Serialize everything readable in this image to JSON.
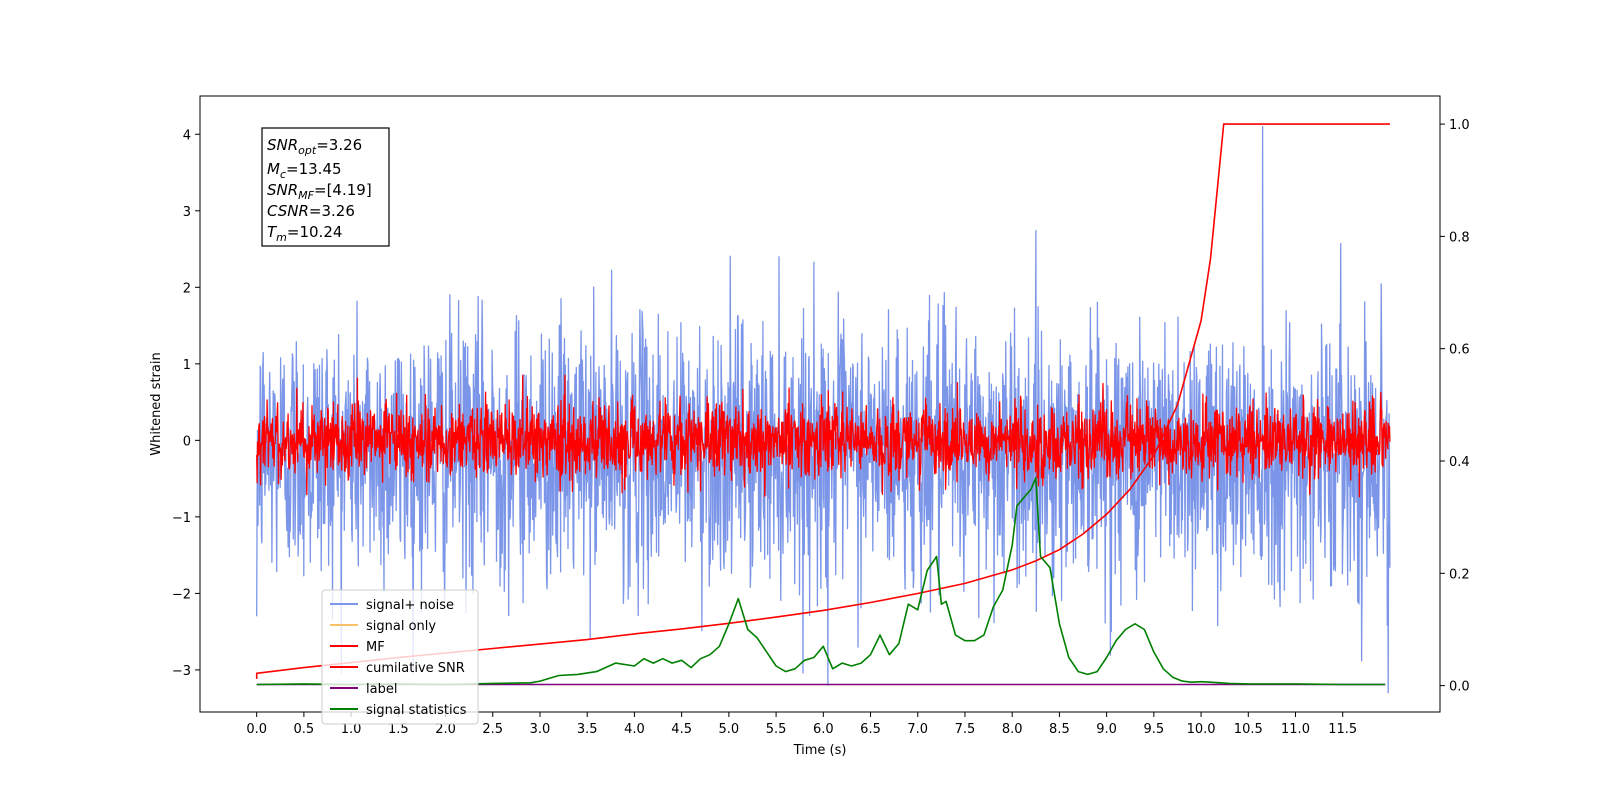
{
  "chart_data": {
    "type": "line",
    "xlabel": "Time (s)",
    "ylabel": "Whitened strain",
    "xlim": [
      -0.6,
      12.53
    ],
    "ylim": [
      -3.55,
      4.5
    ],
    "y2lim": [
      -0.047,
      1.05
    ],
    "x_ticks": [
      "0.0",
      "0.5",
      "1.0",
      "1.5",
      "2.0",
      "2.5",
      "3.0",
      "3.5",
      "4.0",
      "4.5",
      "5.0",
      "5.5",
      "6.0",
      "6.5",
      "7.0",
      "7.5",
      "8.0",
      "8.5",
      "9.0",
      "9.5",
      "10.0",
      "10.5",
      "11.0",
      "11.5"
    ],
    "y_ticks": [
      "−3",
      "−2",
      "−1",
      "0",
      "1",
      "2",
      "3",
      "4"
    ],
    "y2_ticks": [
      "0.0",
      "0.2",
      "0.4",
      "0.6",
      "0.8",
      "1.0"
    ],
    "annotation": {
      "snr_opt": {
        "var": "SNR",
        "sub": "opt",
        "value": "=3.26"
      },
      "mc": {
        "var": "M",
        "sub": "c",
        "value": "=13.45"
      },
      "snr_mf": {
        "var": "SNR",
        "sub": "MF",
        "value": "=[4.19]"
      },
      "csnr": {
        "var": "CSNR",
        "value": "=3.26"
      },
      "tm": {
        "var": "T",
        "sub": "m",
        "value": "=10.24"
      }
    },
    "legend": {
      "placement": "lower-left",
      "entries": [
        {
          "label": "signal+ noise",
          "color": "#7b96e8"
        },
        {
          "label": "signal only",
          "color": "#f5c26b"
        },
        {
          "label": "MF",
          "color": "#ff0000"
        },
        {
          "label": "cumilative SNR",
          "color": "#ff0000"
        },
        {
          "label": "label",
          "color": "#800080"
        },
        {
          "label": "signal statistics",
          "color": "#008000"
        }
      ]
    },
    "series": [
      {
        "name": "signal+ noise",
        "axis": "left",
        "color": "#7b96e8",
        "description": "noise",
        "x_range": [
          0.0,
          12.0
        ],
        "center": -0.15,
        "spread": 0.85,
        "spikes": [
          {
            "x": 10.65,
            "y": 4.1
          },
          {
            "x": 6.05,
            "y": -3.2
          },
          {
            "x": 11.98,
            "y": -3.3
          },
          {
            "x": 0.0,
            "y": -2.3
          }
        ]
      },
      {
        "name": "MF",
        "axis": "left",
        "color": "#ff0000",
        "description": "noise",
        "x_range": [
          0.0,
          12.0
        ],
        "center": 0.0,
        "spread": 0.25
      },
      {
        "name": "cumilative SNR",
        "axis": "right",
        "color": "#ff0000",
        "x": [
          0.0,
          0.0,
          0.5,
          1,
          1.5,
          2,
          2.5,
          3,
          3.5,
          4,
          4.5,
          5,
          5.5,
          6,
          6.5,
          7,
          7.5,
          8,
          8.25,
          8.5,
          8.75,
          9,
          9.25,
          9.5,
          9.75,
          10,
          10.1,
          10.24,
          12.0
        ],
        "y": [
          0.012,
          0.022,
          0.032,
          0.041,
          0.05,
          0.058,
          0.066,
          0.074,
          0.082,
          0.092,
          0.101,
          0.111,
          0.122,
          0.134,
          0.148,
          0.164,
          0.182,
          0.206,
          0.222,
          0.242,
          0.27,
          0.305,
          0.35,
          0.41,
          0.5,
          0.65,
          0.76,
          1.0,
          1.0
        ]
      },
      {
        "name": "label",
        "axis": "right",
        "color": "#800080",
        "x": [
          0.0,
          11.95
        ],
        "y": [
          0.002,
          0.002
        ]
      },
      {
        "name": "signal statistics",
        "axis": "right",
        "color": "#008000",
        "x": [
          0,
          0.5,
          1,
          1.5,
          2,
          2.5,
          2.9,
          3.0,
          3.2,
          3.4,
          3.6,
          3.8,
          4.0,
          4.1,
          4.2,
          4.3,
          4.4,
          4.5,
          4.6,
          4.7,
          4.8,
          4.9,
          5.0,
          5.1,
          5.2,
          5.3,
          5.4,
          5.5,
          5.6,
          5.7,
          5.8,
          5.9,
          6.0,
          6.1,
          6.2,
          6.3,
          6.4,
          6.5,
          6.6,
          6.7,
          6.8,
          6.9,
          7.0,
          7.1,
          7.2,
          7.25,
          7.3,
          7.4,
          7.5,
          7.6,
          7.7,
          7.8,
          7.9,
          8.0,
          8.05,
          8.1,
          8.2,
          8.25,
          8.3,
          8.4,
          8.5,
          8.6,
          8.7,
          8.8,
          8.9,
          9.0,
          9.1,
          9.2,
          9.3,
          9.4,
          9.5,
          9.6,
          9.7,
          9.8,
          9.9,
          10.0,
          10.1,
          10.2,
          10.3,
          10.5,
          11.0,
          11.5,
          11.95
        ],
        "y": [
          0.002,
          0.003,
          0.002,
          0.003,
          0.002,
          0.004,
          0.005,
          0.008,
          0.018,
          0.02,
          0.025,
          0.04,
          0.035,
          0.048,
          0.04,
          0.048,
          0.04,
          0.045,
          0.032,
          0.048,
          0.055,
          0.07,
          0.11,
          0.155,
          0.1,
          0.085,
          0.06,
          0.035,
          0.025,
          0.03,
          0.045,
          0.05,
          0.07,
          0.03,
          0.04,
          0.035,
          0.04,
          0.055,
          0.09,
          0.055,
          0.075,
          0.145,
          0.135,
          0.205,
          0.23,
          0.145,
          0.15,
          0.09,
          0.08,
          0.08,
          0.09,
          0.14,
          0.17,
          0.25,
          0.32,
          0.33,
          0.35,
          0.37,
          0.23,
          0.21,
          0.11,
          0.05,
          0.025,
          0.02,
          0.025,
          0.05,
          0.08,
          0.1,
          0.11,
          0.1,
          0.06,
          0.03,
          0.015,
          0.008,
          0.006,
          0.007,
          0.006,
          0.005,
          0.004,
          0.003,
          0.003,
          0.002,
          0.002
        ]
      }
    ]
  }
}
